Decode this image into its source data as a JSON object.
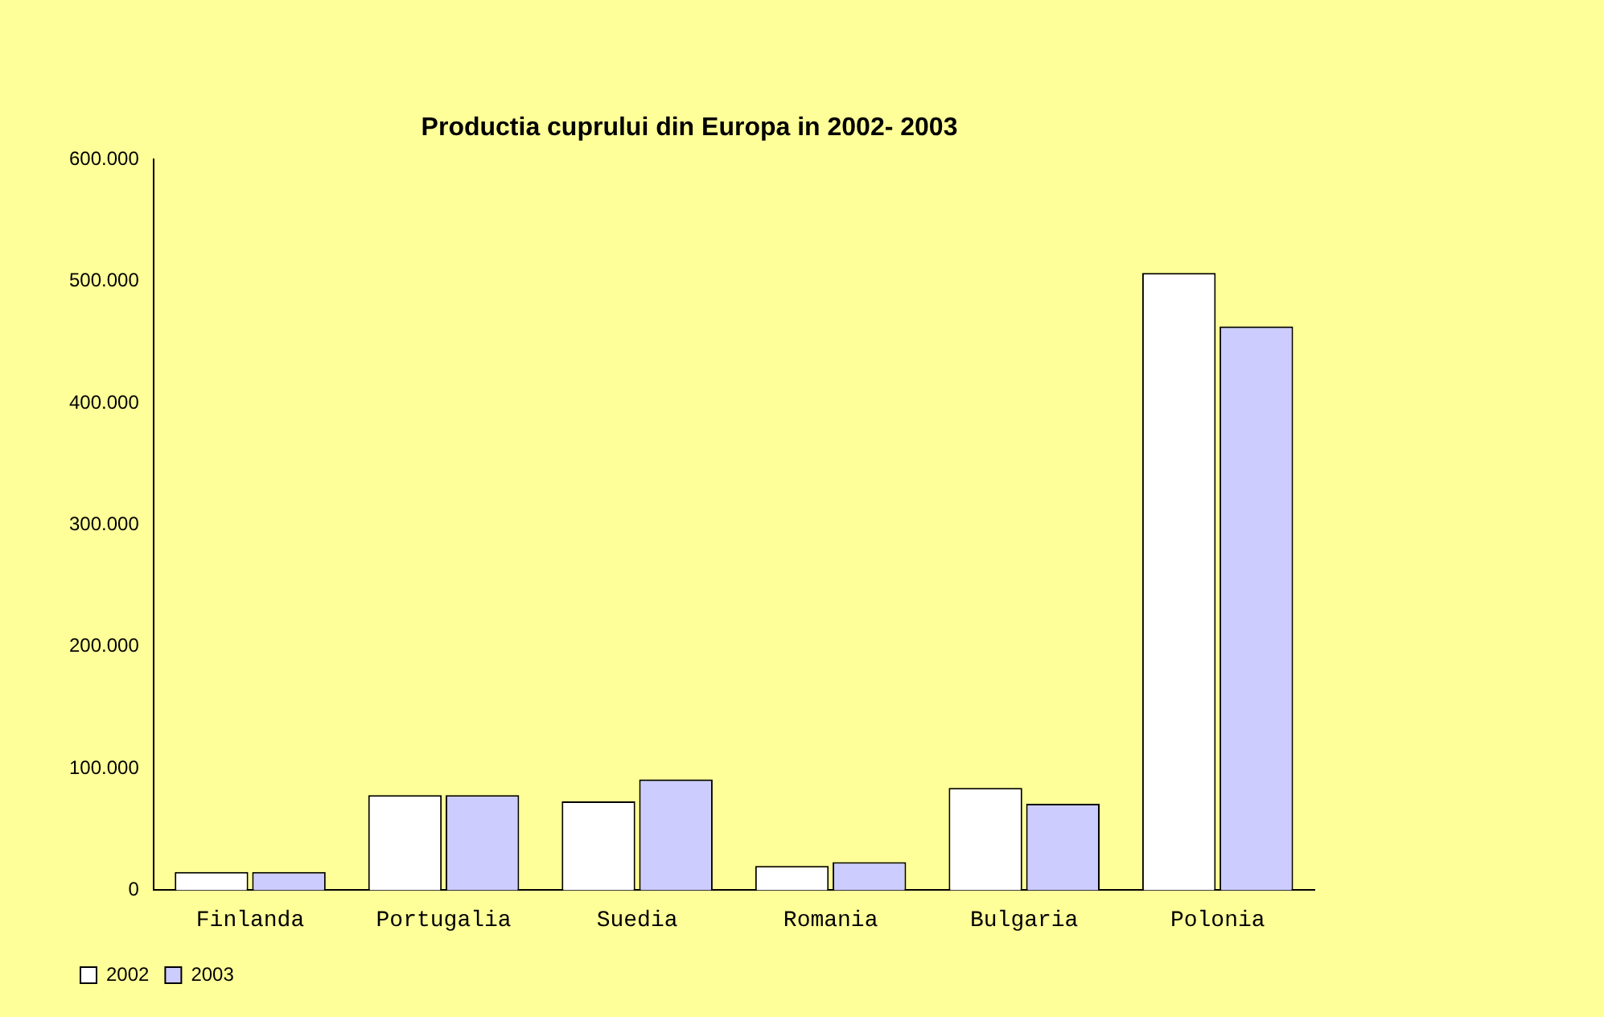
{
  "chart_data": {
    "type": "bar",
    "title": "Productia cuprului din Europa in 2002- 2003",
    "categories": [
      "Finlanda",
      "Portugalia",
      "Suedia",
      "Romania",
      "Bulgaria",
      "Polonia"
    ],
    "series": [
      {
        "name": "2002",
        "color": "#ffffff",
        "values": [
          15000,
          78000,
          73000,
          20000,
          84000,
          507000
        ]
      },
      {
        "name": "2003",
        "color": "#ccccff",
        "values": [
          15000,
          78000,
          91000,
          23000,
          71000,
          463000
        ]
      }
    ],
    "ylim": [
      0,
      600000
    ],
    "yticks": [
      0,
      {
        "value": 100000,
        "label": "100.000"
      },
      {
        "value": 200000,
        "label": "200.000"
      },
      {
        "value": 300000,
        "label": "300.000"
      },
      {
        "value": 400000,
        "label": "400.000"
      },
      {
        "value": 500000,
        "label": "500.000"
      },
      {
        "value": 600000,
        "label": "600.000"
      }
    ],
    "grid": false,
    "legend": "bottom left"
  }
}
